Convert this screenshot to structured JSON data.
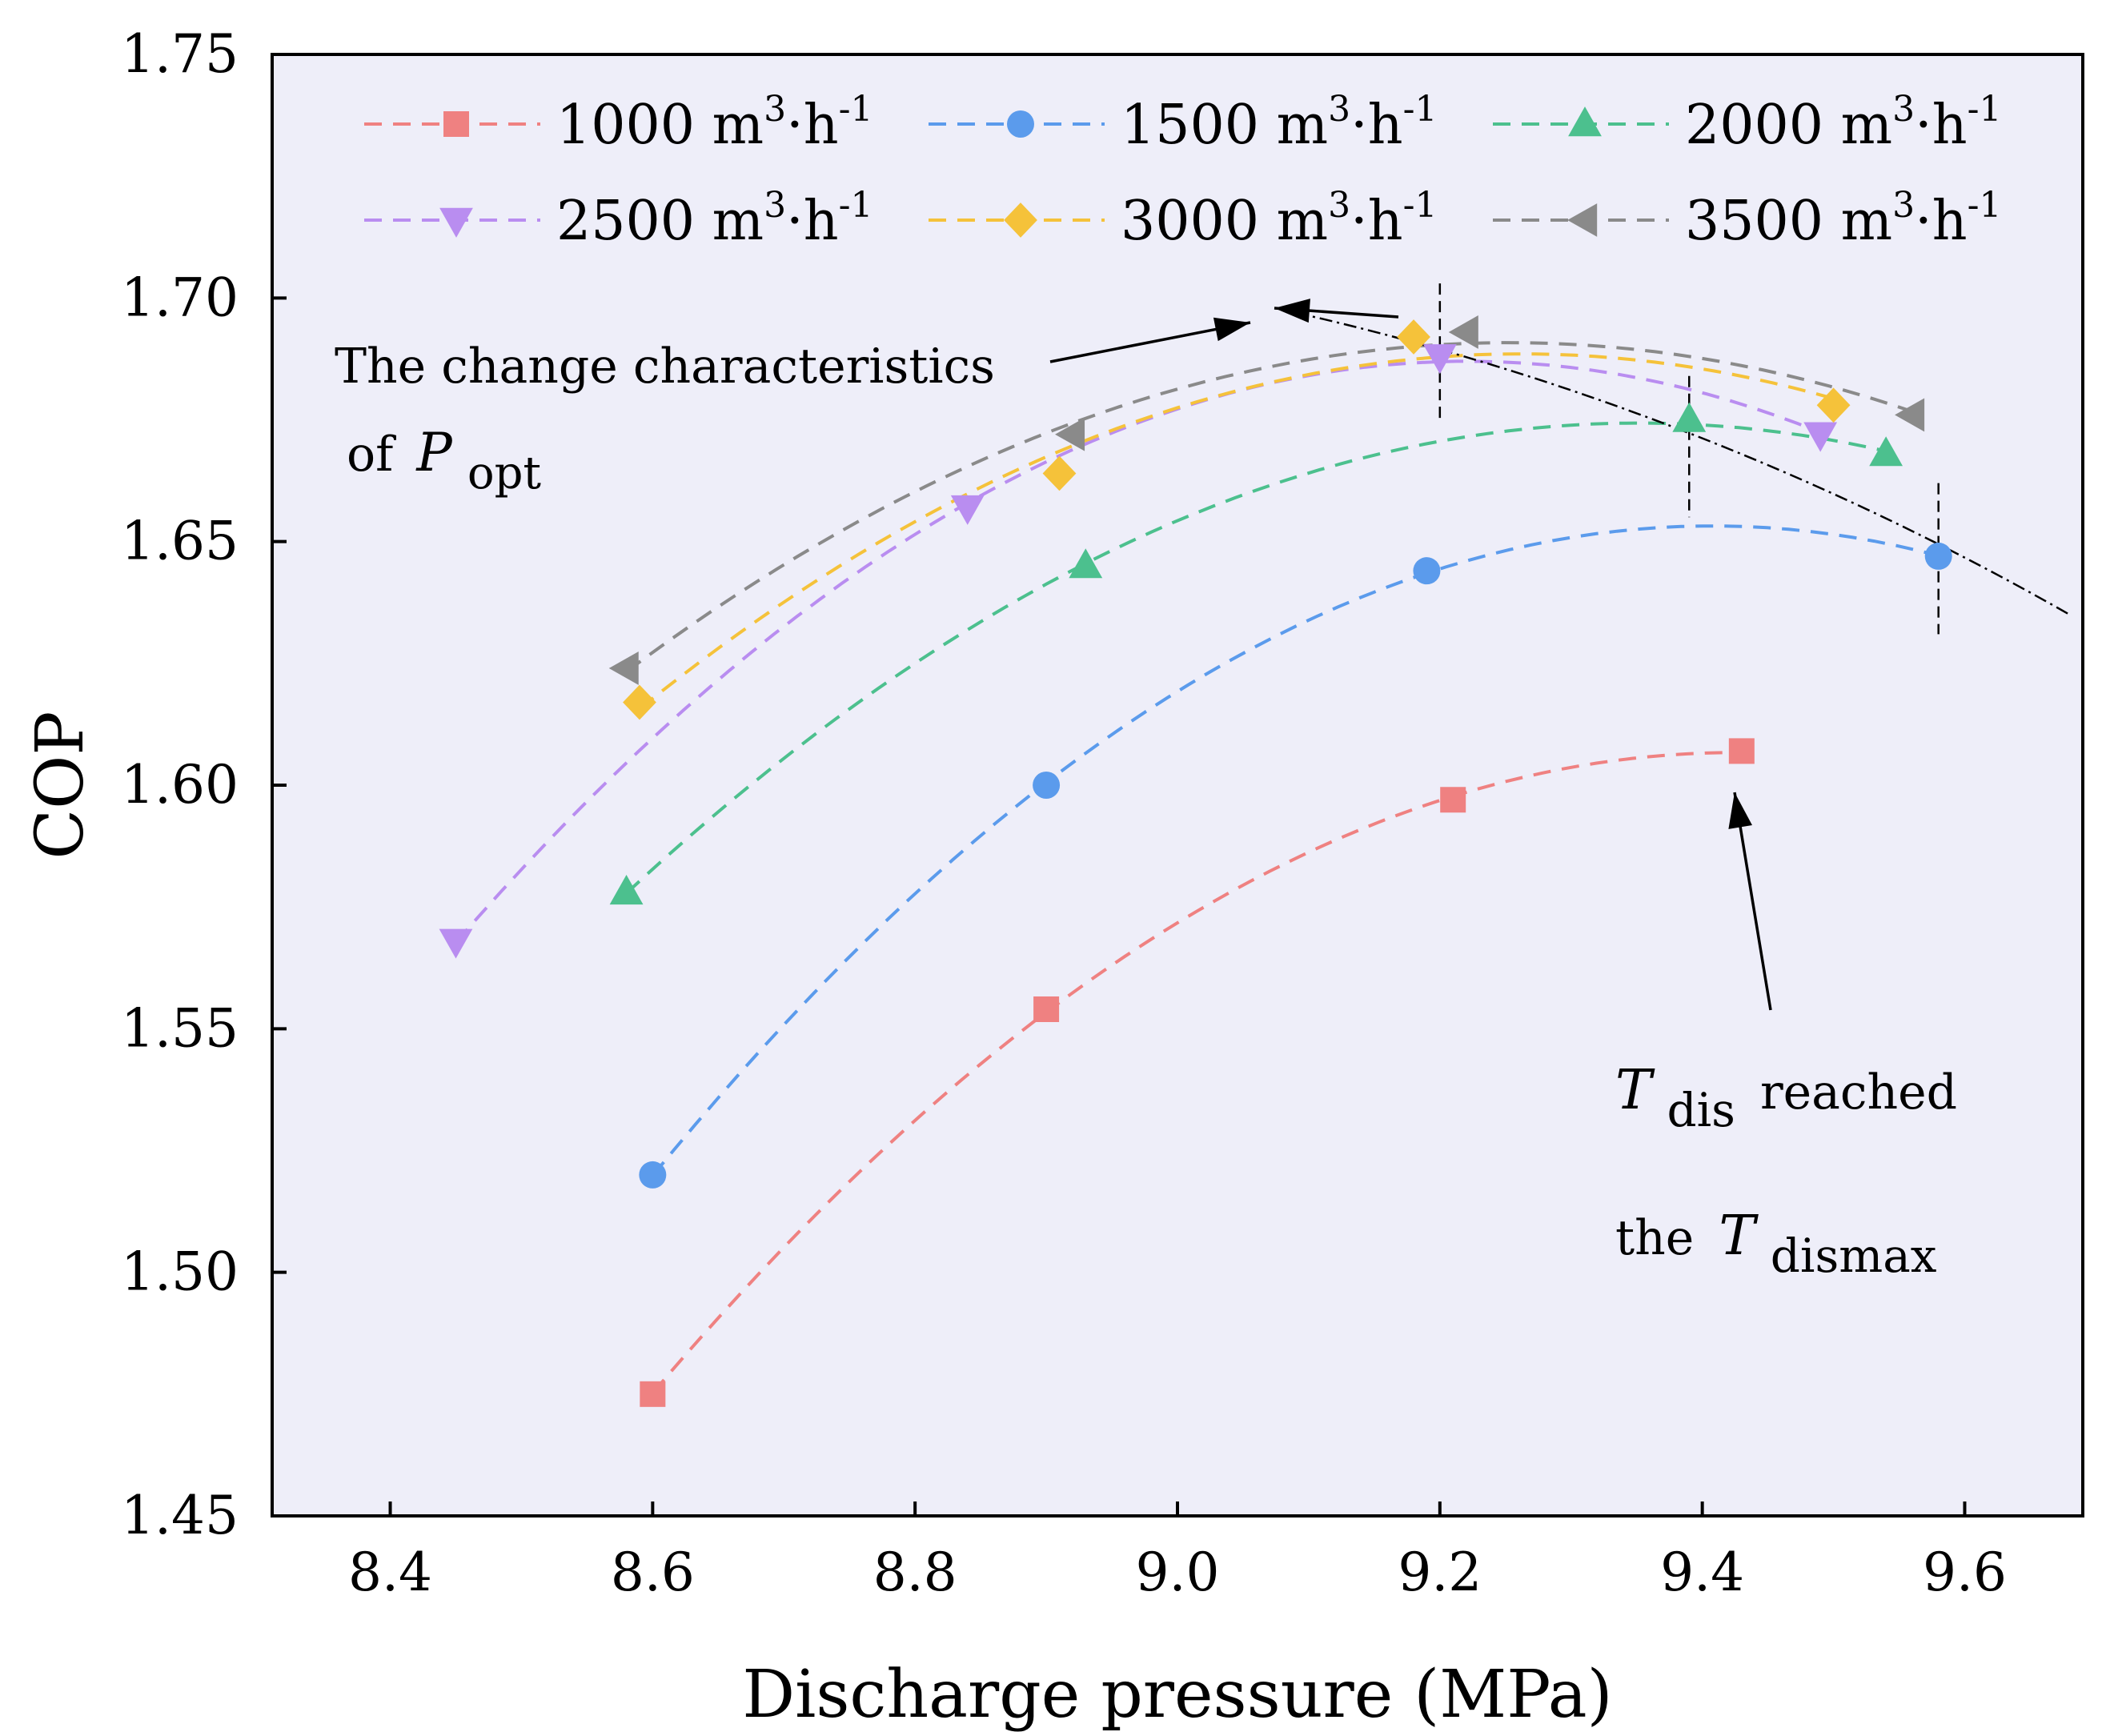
{
  "chart_data": {
    "type": "scatter",
    "title": "",
    "xlabel": "Discharge pressure (MPa)",
    "ylabel": "COP",
    "xlim": [
      8.31,
      9.69
    ],
    "ylim": [
      1.45,
      1.75
    ],
    "xticks": [
      "8.4",
      "8.6",
      "8.8",
      "9.0",
      "9.2",
      "9.4",
      "9.6"
    ],
    "yticks": [
      "1.45",
      "1.50",
      "1.55",
      "1.60",
      "1.65",
      "1.70",
      "1.75"
    ],
    "legend_position": "top",
    "series": [
      {
        "name": "1000",
        "unit": "m3·h-1",
        "marker": "square",
        "color": "#ef8181",
        "x": [
          8.6,
          8.9,
          9.21,
          9.43
        ],
        "y": [
          1.475,
          1.554,
          1.597,
          1.607
        ]
      },
      {
        "name": "1500",
        "unit": "m3·h-1",
        "marker": "circle",
        "color": "#5b9bec",
        "x": [
          8.6,
          8.9,
          9.19,
          9.58
        ],
        "y": [
          1.52,
          1.6,
          1.644,
          1.647
        ]
      },
      {
        "name": "2000",
        "unit": "m3·h-1",
        "marker": "triangle-up",
        "color": "#4cc08e",
        "x": [
          8.58,
          8.93,
          9.39,
          9.54
        ],
        "y": [
          1.578,
          1.645,
          1.675,
          1.668
        ]
      },
      {
        "name": "2500",
        "unit": "m3·h-1",
        "marker": "triangle-down",
        "color": "#b98df0",
        "x": [
          8.45,
          8.84,
          9.2,
          9.49
        ],
        "y": [
          1.568,
          1.657,
          1.688,
          1.672
        ]
      },
      {
        "name": "3000",
        "unit": "m3·h-1",
        "marker": "diamond",
        "color": "#f5c23a",
        "x": [
          8.59,
          8.91,
          9.18,
          9.5
        ],
        "y": [
          1.617,
          1.664,
          1.692,
          1.678
        ]
      },
      {
        "name": "3500",
        "unit": "m3·h-1",
        "marker": "triangle-left",
        "color": "#8a8a8a",
        "x": [
          8.58,
          8.92,
          9.22,
          9.56
        ],
        "y": [
          1.624,
          1.672,
          1.693,
          1.676
        ]
      }
    ],
    "annotations": {
      "popt_line1": "The change characteristics",
      "popt_line2_prefix": "of",
      "popt_var": "P",
      "popt_sub": "opt",
      "tdis_var": "T",
      "tdis_sub": "dis",
      "tdis_suffix": "reached",
      "tdismax_prefix": "the",
      "tdismax_var": "T",
      "tdismax_sub": "dismax"
    }
  }
}
